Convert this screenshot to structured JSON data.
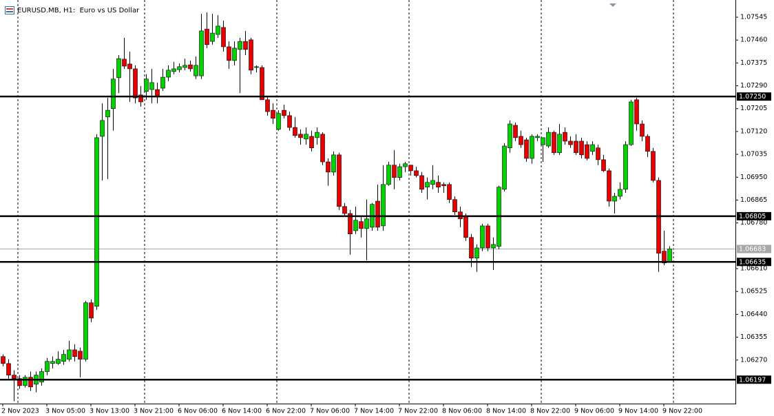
{
  "chart_data": {
    "type": "candlestick",
    "title": "EURUSD.MB, H1:  Euro vs US Dollar",
    "up_color": "#00d200",
    "down_color": "#e60000",
    "open": [
      1.06283,
      1.06257,
      1.06214,
      1.06201,
      1.06175,
      1.06206,
      1.0618,
      1.06188,
      1.06227,
      1.06257,
      1.06257,
      1.06265,
      1.06273,
      1.06308,
      1.06303,
      1.06273,
      1.06483,
      1.0647,
      1.07102,
      1.07174,
      1.07205,
      1.0732,
      1.07389,
      1.07371,
      1.07353,
      1.07256,
      1.07269,
      1.07276,
      1.07276,
      1.07281,
      1.07322,
      1.07343,
      1.0735,
      1.07358,
      1.07368,
      1.07327,
      1.07327,
      1.07501,
      1.07455,
      1.07481,
      1.07507,
      1.07435,
      1.07384,
      1.07425,
      1.07455,
      1.07461,
      1.07358,
      1.07358,
      1.07238,
      1.07199,
      1.07128,
      1.07199,
      1.07179,
      1.07135,
      1.0711,
      1.07092,
      1.07102,
      1.07097,
      1.0711,
      1.07007,
      1.06969,
      1.07033,
      1.06841,
      1.06815,
      1.06751,
      1.06785,
      1.06759,
      1.06764,
      1.06861,
      1.06769,
      1.06923,
      1.06995,
      1.06949,
      1.06989,
      1.06995,
      1.06974,
      1.06956,
      1.06913,
      1.06923,
      1.06931,
      1.06923,
      1.06923,
      1.06867,
      1.06821,
      1.06803,
      1.06726,
      1.06649,
      1.06687,
      1.06769,
      1.06687,
      1.06693,
      1.06905,
      1.07059,
      1.07143,
      1.07102,
      1.07089,
      1.0702,
      1.07097,
      1.07071,
      1.07066,
      1.07117,
      1.07041,
      1.07117,
      1.07084,
      1.07084,
      1.07084,
      1.07071,
      1.07046,
      1.07059,
      1.07015,
      1.06974,
      1.06861,
      1.06879,
      1.06905,
      1.07071,
      1.07238,
      1.07148,
      1.07102,
      1.07046,
      1.06938,
      1.06675,
      1.06636
    ],
    "high": [
      1.06291,
      1.06273,
      1.06232,
      1.06214,
      1.06214,
      1.06227,
      1.06227,
      1.06239,
      1.06278,
      1.06283,
      1.06303,
      1.06308,
      1.06342,
      1.06329,
      1.06316,
      1.0649,
      1.06495,
      1.0711,
      1.07225,
      1.07245,
      1.07353,
      1.07404,
      1.07468,
      1.07417,
      1.07366,
      1.07289,
      1.07333,
      1.07353,
      1.07302,
      1.07353,
      1.07366,
      1.07379,
      1.07373,
      1.07391,
      1.07384,
      1.07399,
      1.07558,
      1.07563,
      1.07558,
      1.07553,
      1.07532,
      1.07455,
      1.07455,
      1.07468,
      1.07494,
      1.07468,
      1.07366,
      1.07366,
      1.07251,
      1.07225,
      1.07199,
      1.0722,
      1.07194,
      1.07174,
      1.07128,
      1.07135,
      1.07123,
      1.07135,
      1.07117,
      1.0702,
      1.07046,
      1.07041,
      1.06854,
      1.06828,
      1.06841,
      1.06803,
      1.06867,
      1.06854,
      1.06923,
      1.06995,
      1.07007,
      1.07051,
      1.07,
      1.07007,
      1.06995,
      1.06989,
      1.06969,
      1.06949,
      1.06995,
      1.06956,
      1.06931,
      1.06931,
      1.06879,
      1.06841,
      1.06815,
      1.06739,
      1.067,
      1.06777,
      1.06777,
      1.06726,
      1.06918,
      1.07077,
      1.07161,
      1.07153,
      1.07123,
      1.07097,
      1.0711,
      1.0711,
      1.07097,
      1.07135,
      1.07123,
      1.07148,
      1.07135,
      1.07102,
      1.0711,
      1.07097,
      1.07084,
      1.07084,
      1.07071,
      1.07033,
      1.06982,
      1.06892,
      1.06931,
      1.07084,
      1.07238,
      1.07245,
      1.07161,
      1.0711,
      1.07059,
      1.06949,
      1.06751,
      1.06693
    ],
    "low": [
      1.06247,
      1.06201,
      1.06117,
      1.06163,
      1.06168,
      1.06155,
      1.0615,
      1.06175,
      1.06214,
      1.06239,
      1.06252,
      1.06252,
      1.06265,
      1.06265,
      1.06206,
      1.06265,
      1.06411,
      1.06457,
      1.06938,
      1.06943,
      1.07123,
      1.07263,
      1.07353,
      1.0723,
      1.07225,
      1.07212,
      1.07238,
      1.07225,
      1.07225,
      1.07271,
      1.07307,
      1.07333,
      1.0734,
      1.07348,
      1.07343,
      1.07315,
      1.07315,
      1.0743,
      1.07443,
      1.07468,
      1.07417,
      1.07353,
      1.07366,
      1.07263,
      1.07404,
      1.07333,
      1.0734,
      1.07238,
      1.07179,
      1.07148,
      1.07123,
      1.07169,
      1.07123,
      1.07097,
      1.07071,
      1.07071,
      1.07046,
      1.07071,
      1.06995,
      1.06918,
      1.06956,
      1.06828,
      1.06803,
      1.06662,
      1.06739,
      1.06726,
      1.06641,
      1.06751,
      1.06751,
      1.06751,
      1.06918,
      1.06905,
      1.06938,
      1.06969,
      1.06956,
      1.06949,
      1.06892,
      1.06867,
      1.06905,
      1.06892,
      1.06892,
      1.06854,
      1.0681,
      1.06764,
      1.06713,
      1.06616,
      1.06598,
      1.06675,
      1.06675,
      1.06605,
      1.06682,
      1.06897,
      1.07041,
      1.07084,
      1.07059,
      1.07007,
      1.07,
      1.07084,
      1.07007,
      1.07059,
      1.07033,
      1.07033,
      1.07071,
      1.07059,
      1.07033,
      1.0702,
      1.07013,
      1.07033,
      1.06995,
      1.06969,
      1.06841,
      1.06815,
      1.06867,
      1.06892,
      1.07066,
      1.07123,
      1.07084,
      1.07025,
      1.06931,
      1.06598,
      1.06623,
      1.06636
    ],
    "close": [
      1.06257,
      1.06214,
      1.06201,
      1.06175,
      1.06206,
      1.0617,
      1.06214,
      1.06227,
      1.06265,
      1.06265,
      1.06273,
      1.06291,
      1.06308,
      1.06283,
      1.06273,
      1.06483,
      1.06426,
      1.07097,
      1.07161,
      1.07199,
      1.07315,
      1.07391,
      1.07363,
      1.07353,
      1.07245,
      1.0723,
      1.07315,
      1.07302,
      1.07251,
      1.07322,
      1.07348,
      1.07353,
      1.07361,
      1.07366,
      1.07353,
      1.07366,
      1.07494,
      1.07443,
      1.07486,
      1.07512,
      1.07435,
      1.07384,
      1.0743,
      1.07455,
      1.07425,
      1.07348,
      1.07361,
      1.07238,
      1.07194,
      1.07169,
      1.07187,
      1.07179,
      1.07135,
      1.07105,
      1.07097,
      1.0711,
      1.07059,
      1.07117,
      1.07007,
      1.06969,
      1.07033,
      1.06841,
      1.06815,
      1.06739,
      1.0679,
      1.06759,
      1.06795,
      1.06849,
      1.06764,
      1.06923,
      1.06995,
      1.06949,
      1.06989,
      1.07,
      1.06974,
      1.06956,
      1.06905,
      1.06931,
      1.06938,
      1.06913,
      1.06918,
      1.06867,
      1.06821,
      1.06795,
      1.06726,
      1.06649,
      1.06687,
      1.06769,
      1.06687,
      1.067,
      1.06913,
      1.07066,
      1.07148,
      1.07097,
      1.07071,
      1.0702,
      1.07102,
      1.07102,
      1.07097,
      1.07117,
      1.07041,
      1.0711,
      1.07084,
      1.07071,
      1.07041,
      1.07033,
      1.0702,
      1.07071,
      1.07015,
      1.06974,
      1.06861,
      1.06879,
      1.06905,
      1.07071,
      1.0723,
      1.07148,
      1.07102,
      1.07046,
      1.06938,
      1.06667,
      1.06631,
      1.06683
    ],
    "xlim": [
      -0.5,
      133
    ],
    "ylim": [
      1.06108,
      1.07609
    ],
    "xticks": [
      {
        "value": 0,
        "label": "2 Nov 2023"
      },
      {
        "value": 8,
        "label": "3 Nov 05:00"
      },
      {
        "value": 16,
        "label": "3 Nov 13:00"
      },
      {
        "value": 24,
        "label": "3 Nov 21:00"
      },
      {
        "value": 32,
        "label": "6 Nov 06:00"
      },
      {
        "value": 40,
        "label": "6 Nov 14:00"
      },
      {
        "value": 48,
        "label": "6 Nov 22:00"
      },
      {
        "value": 56,
        "label": "7 Nov 06:00"
      },
      {
        "value": 64,
        "label": "7 Nov 14:00"
      },
      {
        "value": 72,
        "label": "7 Nov 22:00"
      },
      {
        "value": 80,
        "label": "8 Nov 06:00"
      },
      {
        "value": 88,
        "label": "8 Nov 14:00"
      },
      {
        "value": 96,
        "label": "8 Nov 22:00"
      },
      {
        "value": 104,
        "label": "9 Nov 06:00"
      },
      {
        "value": 112,
        "label": "9 Nov 14:00"
      },
      {
        "value": 120,
        "label": "9 Nov 22:00"
      }
    ],
    "yticks": [
      {
        "value": 1.07545,
        "label": "1.07545"
      },
      {
        "value": 1.0746,
        "label": "1.07460"
      },
      {
        "value": 1.07375,
        "label": "1.07375"
      },
      {
        "value": 1.0729,
        "label": "1.07290"
      },
      {
        "value": 1.07205,
        "label": "1.07205"
      },
      {
        "value": 1.0712,
        "label": "1.07120"
      },
      {
        "value": 1.07035,
        "label": "1.07035"
      },
      {
        "value": 1.0695,
        "label": "1.06950"
      },
      {
        "value": 1.06865,
        "label": "1.06865"
      },
      {
        "value": 1.0678,
        "label": "1.06780"
      },
      {
        "value": 1.0661,
        "label": "1.06610"
      },
      {
        "value": 1.06525,
        "label": "1.06525"
      },
      {
        "value": 1.0644,
        "label": "1.06440"
      },
      {
        "value": 1.06355,
        "label": "1.06355"
      },
      {
        "value": 1.0627,
        "label": "1.06270"
      }
    ],
    "levels": [
      {
        "value": 1.0725,
        "label": "1.07250"
      },
      {
        "value": 1.06805,
        "label": "1.06805"
      },
      {
        "value": 1.06635,
        "label": "1.06635"
      },
      {
        "value": 1.06197,
        "label": "1.06197"
      }
    ],
    "current_price": {
      "value": 1.06683,
      "label": "1.06683"
    }
  }
}
